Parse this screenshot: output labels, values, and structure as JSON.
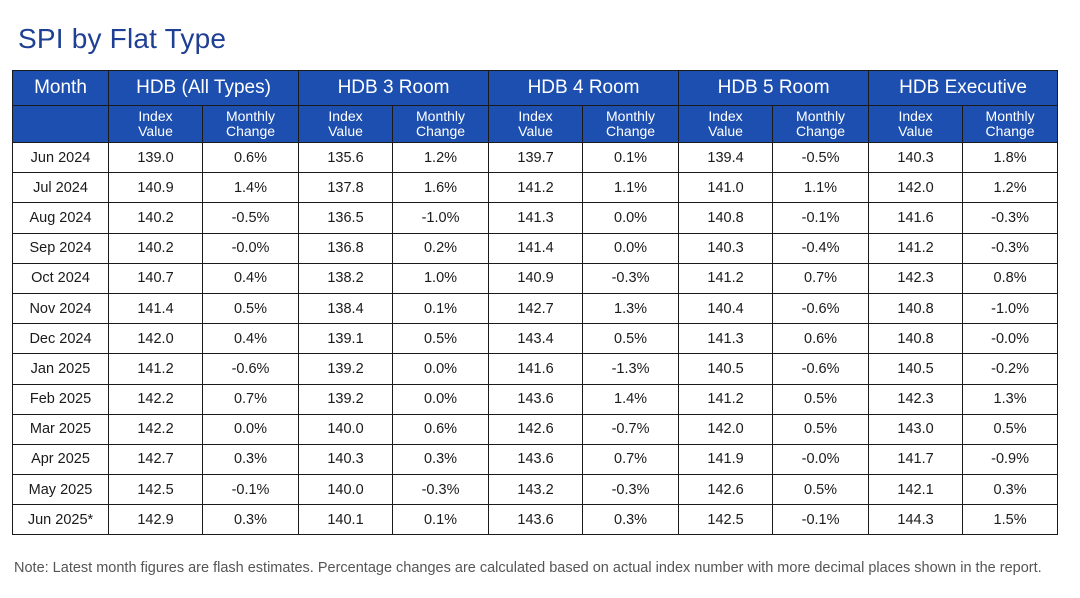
{
  "title": "SPI by Flat Type",
  "table": {
    "month_header": "Month",
    "groups": [
      "HDB (All Types)",
      "HDB 3 Room",
      "HDB 4 Room",
      "HDB 5 Room",
      "HDB Executive"
    ],
    "subheaders": [
      "Index\nValue",
      "Monthly\nChange"
    ],
    "rows": [
      [
        "Jun 2024",
        "139.0",
        "0.6%",
        "135.6",
        "1.2%",
        "139.7",
        "0.1%",
        "139.4",
        "-0.5%",
        "140.3",
        "1.8%"
      ],
      [
        "Jul 2024",
        "140.9",
        "1.4%",
        "137.8",
        "1.6%",
        "141.2",
        "1.1%",
        "141.0",
        "1.1%",
        "142.0",
        "1.2%"
      ],
      [
        "Aug 2024",
        "140.2",
        "-0.5%",
        "136.5",
        "-1.0%",
        "141.3",
        "0.0%",
        "140.8",
        "-0.1%",
        "141.6",
        "-0.3%"
      ],
      [
        "Sep 2024",
        "140.2",
        "-0.0%",
        "136.8",
        "0.2%",
        "141.4",
        "0.0%",
        "140.3",
        "-0.4%",
        "141.2",
        "-0.3%"
      ],
      [
        "Oct 2024",
        "140.7",
        "0.4%",
        "138.2",
        "1.0%",
        "140.9",
        "-0.3%",
        "141.2",
        "0.7%",
        "142.3",
        "0.8%"
      ],
      [
        "Nov 2024",
        "141.4",
        "0.5%",
        "138.4",
        "0.1%",
        "142.7",
        "1.3%",
        "140.4",
        "-0.6%",
        "140.8",
        "-1.0%"
      ],
      [
        "Dec 2024",
        "142.0",
        "0.4%",
        "139.1",
        "0.5%",
        "143.4",
        "0.5%",
        "141.3",
        "0.6%",
        "140.8",
        "-0.0%"
      ],
      [
        "Jan 2025",
        "141.2",
        "-0.6%",
        "139.2",
        "0.0%",
        "141.6",
        "-1.3%",
        "140.5",
        "-0.6%",
        "140.5",
        "-0.2%"
      ],
      [
        "Feb 2025",
        "142.2",
        "0.7%",
        "139.2",
        "0.0%",
        "143.6",
        "1.4%",
        "141.2",
        "0.5%",
        "142.3",
        "1.3%"
      ],
      [
        "Mar 2025",
        "142.2",
        "0.0%",
        "140.0",
        "0.6%",
        "142.6",
        "-0.7%",
        "142.0",
        "0.5%",
        "143.0",
        "0.5%"
      ],
      [
        "Apr 2025",
        "142.7",
        "0.3%",
        "140.3",
        "0.3%",
        "143.6",
        "0.7%",
        "141.9",
        "-0.0%",
        "141.7",
        "-0.9%"
      ],
      [
        "May 2025",
        "142.5",
        "-0.1%",
        "140.0",
        "-0.3%",
        "143.2",
        "-0.3%",
        "142.6",
        "0.5%",
        "142.1",
        "0.3%"
      ],
      [
        "Jun 2025*",
        "142.9",
        "0.3%",
        "140.1",
        "0.1%",
        "143.6",
        "0.3%",
        "142.5",
        "-0.1%",
        "144.3",
        "1.5%"
      ]
    ]
  },
  "note": "Note: Latest month figures are flash estimates. Percentage changes are calculated based on actual index number with more decimal places shown in the report.",
  "colors": {
    "title": "#1f3f95",
    "header_bg": "#1d4fb0",
    "header_text": "#ffffff",
    "note_text": "#555555"
  }
}
